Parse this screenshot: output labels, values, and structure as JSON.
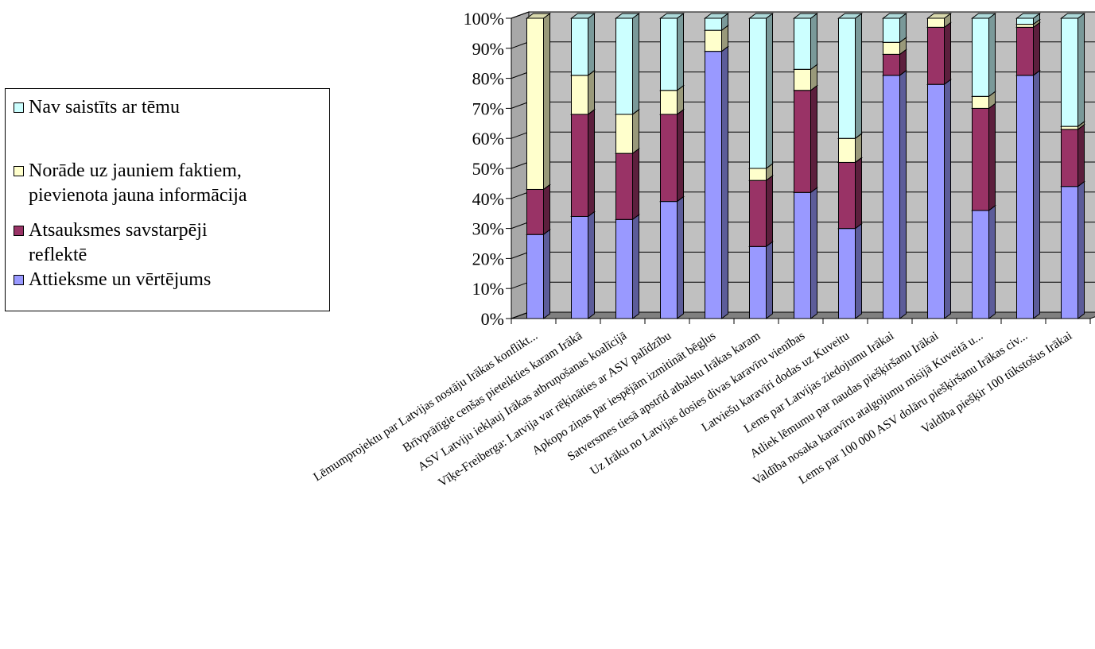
{
  "chart_data": {
    "type": "bar",
    "stacked": true,
    "percent": true,
    "three_d": true,
    "categories": [
      "Lēmumprojektu par Latvijas nostāju Irākas konflikt...",
      "Brīvprātīgie cenšas pieteikties karam Irākā",
      "ASV Latviju iekļauj Irākas atbruņošanas koalīcijā",
      "Vīķe-Freiberga: Latvija var rēķināties ar ASV palīdzību",
      "Apkopo ziņas par iespējām izmitināt bēgļus",
      "Satversmes tiesā apstrīd atbalstu Irākas karam",
      "Uz Irāku no Latvijas dosies divas karavīru vienības",
      "Latviešu karavīri dodas uz Kuveitu",
      "Lems par Latvijas ziedojumu Irākai",
      "Atliek lēmumu par naudas piešķiršanu Irākai",
      "Valdība nosaka karavīru atalgojumu misijā Kuveitā u...",
      "Lems par 100 000 ASV dolāru piešķiršanu Irākas civ...",
      "Valdība piešķir 100 tūkstošus Irākai"
    ],
    "series": [
      {
        "name": "Attieksme un vērtējums",
        "color": "#9999ff",
        "values": [
          28,
          34,
          33,
          39,
          89,
          24,
          42,
          30,
          81,
          78,
          36,
          81,
          44
        ]
      },
      {
        "name": "Atsauksmes savstarpēji reflektē",
        "color": "#993366",
        "values": [
          15,
          34,
          22,
          29,
          0,
          22,
          34,
          22,
          7,
          19,
          34,
          16,
          19
        ]
      },
      {
        "name": "Norāde uz jauniem faktiem, pievienota jauna informācija",
        "color": "#ffffcc",
        "values": [
          57,
          13,
          13,
          8,
          7,
          4,
          7,
          8,
          4,
          3,
          4,
          1,
          1
        ]
      },
      {
        "name": "Nav saistīts ar tēmu",
        "color": "#ccffff",
        "values": [
          0,
          19,
          32,
          24,
          4,
          50,
          17,
          40,
          8,
          0,
          26,
          2,
          36
        ]
      }
    ],
    "legend_items": [
      {
        "label_lines": [
          "Nav saistīts ar tēmu"
        ],
        "color": "#ccffff"
      },
      {
        "label_lines": [
          "Norāde uz jauniem faktiem,",
          "pievienota jauna informācija"
        ],
        "color": "#ffffcc"
      },
      {
        "label_lines": [
          "Atsauksmes savstarpēji",
          "reflektē"
        ],
        "color": "#993366"
      },
      {
        "label_lines": [
          "Attieksme un vērtējums"
        ],
        "color": "#9999ff"
      }
    ],
    "yticks": [
      "0%",
      "10%",
      "20%",
      "30%",
      "40%",
      "50%",
      "60%",
      "70%",
      "80%",
      "90%",
      "100%"
    ],
    "ylim": [
      0,
      100
    ],
    "legend_position": "left",
    "wall_color": "#c0c0c0",
    "floor_color": "#808080"
  }
}
